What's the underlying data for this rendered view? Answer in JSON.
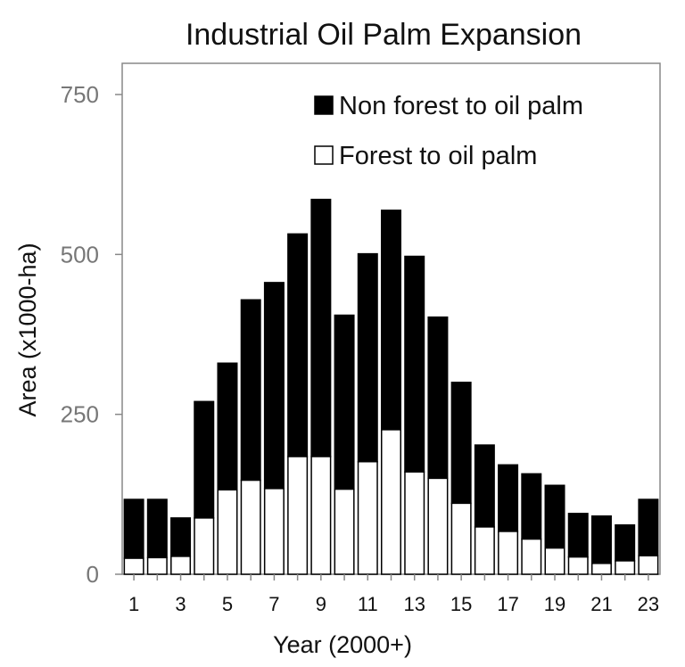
{
  "chart_data": {
    "type": "bar",
    "stacked": true,
    "title": "Industrial Oil Palm Expansion",
    "xlabel": "Year (2000+)",
    "ylabel": "Area (x1000-ha)",
    "ylim": [
      0,
      750
    ],
    "yticks": [
      0,
      250,
      500,
      750
    ],
    "categories": [
      1,
      2,
      3,
      4,
      5,
      6,
      7,
      8,
      9,
      10,
      11,
      12,
      13,
      14,
      15,
      16,
      17,
      18,
      19,
      20,
      21,
      22,
      23
    ],
    "xtick_labels": [
      "1",
      "3",
      "5",
      "7",
      "9",
      "11",
      "13",
      "15",
      "17",
      "19",
      "21",
      "23"
    ],
    "legend_position": "top-right",
    "grid": false,
    "series": [
      {
        "name": "Forest to oil palm",
        "color": "#ffffff",
        "values": [
          25,
          26,
          28,
          88,
          132,
          147,
          134,
          184,
          184,
          133,
          176,
          226,
          160,
          150,
          111,
          74,
          67,
          55,
          41,
          27,
          17,
          21,
          29
        ]
      },
      {
        "name": "Non forest to oil palm",
        "color": "#000000",
        "values": [
          92,
          91,
          60,
          182,
          198,
          282,
          322,
          348,
          402,
          272,
          325,
          343,
          337,
          252,
          189,
          128,
          104,
          102,
          98,
          68,
          74,
          56,
          88
        ]
      }
    ]
  }
}
